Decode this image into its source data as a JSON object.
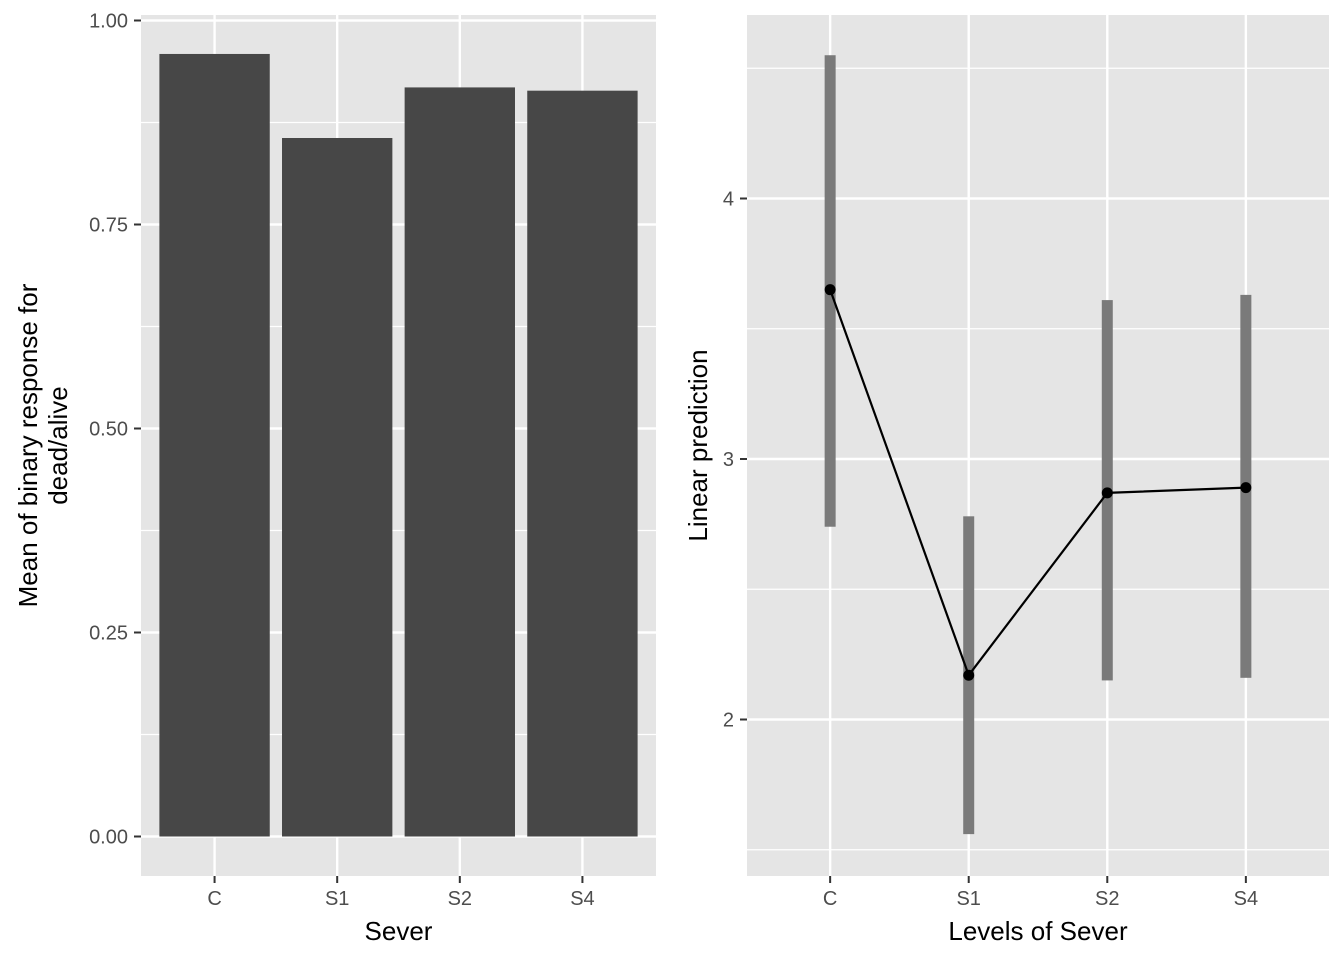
{
  "chart_data": [
    {
      "type": "bar",
      "title": "",
      "xlabel": "Sever",
      "ylabel_lines": [
        "Mean of binary response for",
        "dead/alive"
      ],
      "categories": [
        "C",
        "S1",
        "S2",
        "S4"
      ],
      "values": [
        0.959,
        0.856,
        0.918,
        0.914
      ],
      "ylim": [
        -0.046,
        1.0
      ],
      "yticks": [
        0.0,
        0.25,
        0.5,
        0.75,
        1.0
      ],
      "ytick_labels": [
        "0.00",
        "0.25",
        "0.50",
        "0.75",
        "1.00"
      ],
      "grid": true,
      "colors": {
        "panel": "#e5e5e5",
        "grid": "#ffffff",
        "bar": "#474747",
        "tick": "#333333"
      }
    },
    {
      "type": "line",
      "title": "",
      "xlabel": "Levels of Sever",
      "ylabel": "Linear prediction",
      "categories": [
        "C",
        "S1",
        "S2",
        "S4"
      ],
      "values": [
        3.65,
        2.17,
        2.87,
        2.89
      ],
      "ci_lower": [
        2.74,
        1.56,
        2.15,
        2.16
      ],
      "ci_upper": [
        4.55,
        2.78,
        3.61,
        3.63
      ],
      "ylim": [
        1.5,
        4.65
      ],
      "yticks": [
        2,
        3,
        4
      ],
      "ytick_labels": [
        "2",
        "3",
        "4"
      ],
      "grid": true,
      "colors": {
        "panel": "#e5e5e5",
        "grid": "#ffffff",
        "line": "#000000",
        "point": "#000000",
        "ci": "#7a7a7a",
        "tick": "#333333"
      }
    }
  ]
}
